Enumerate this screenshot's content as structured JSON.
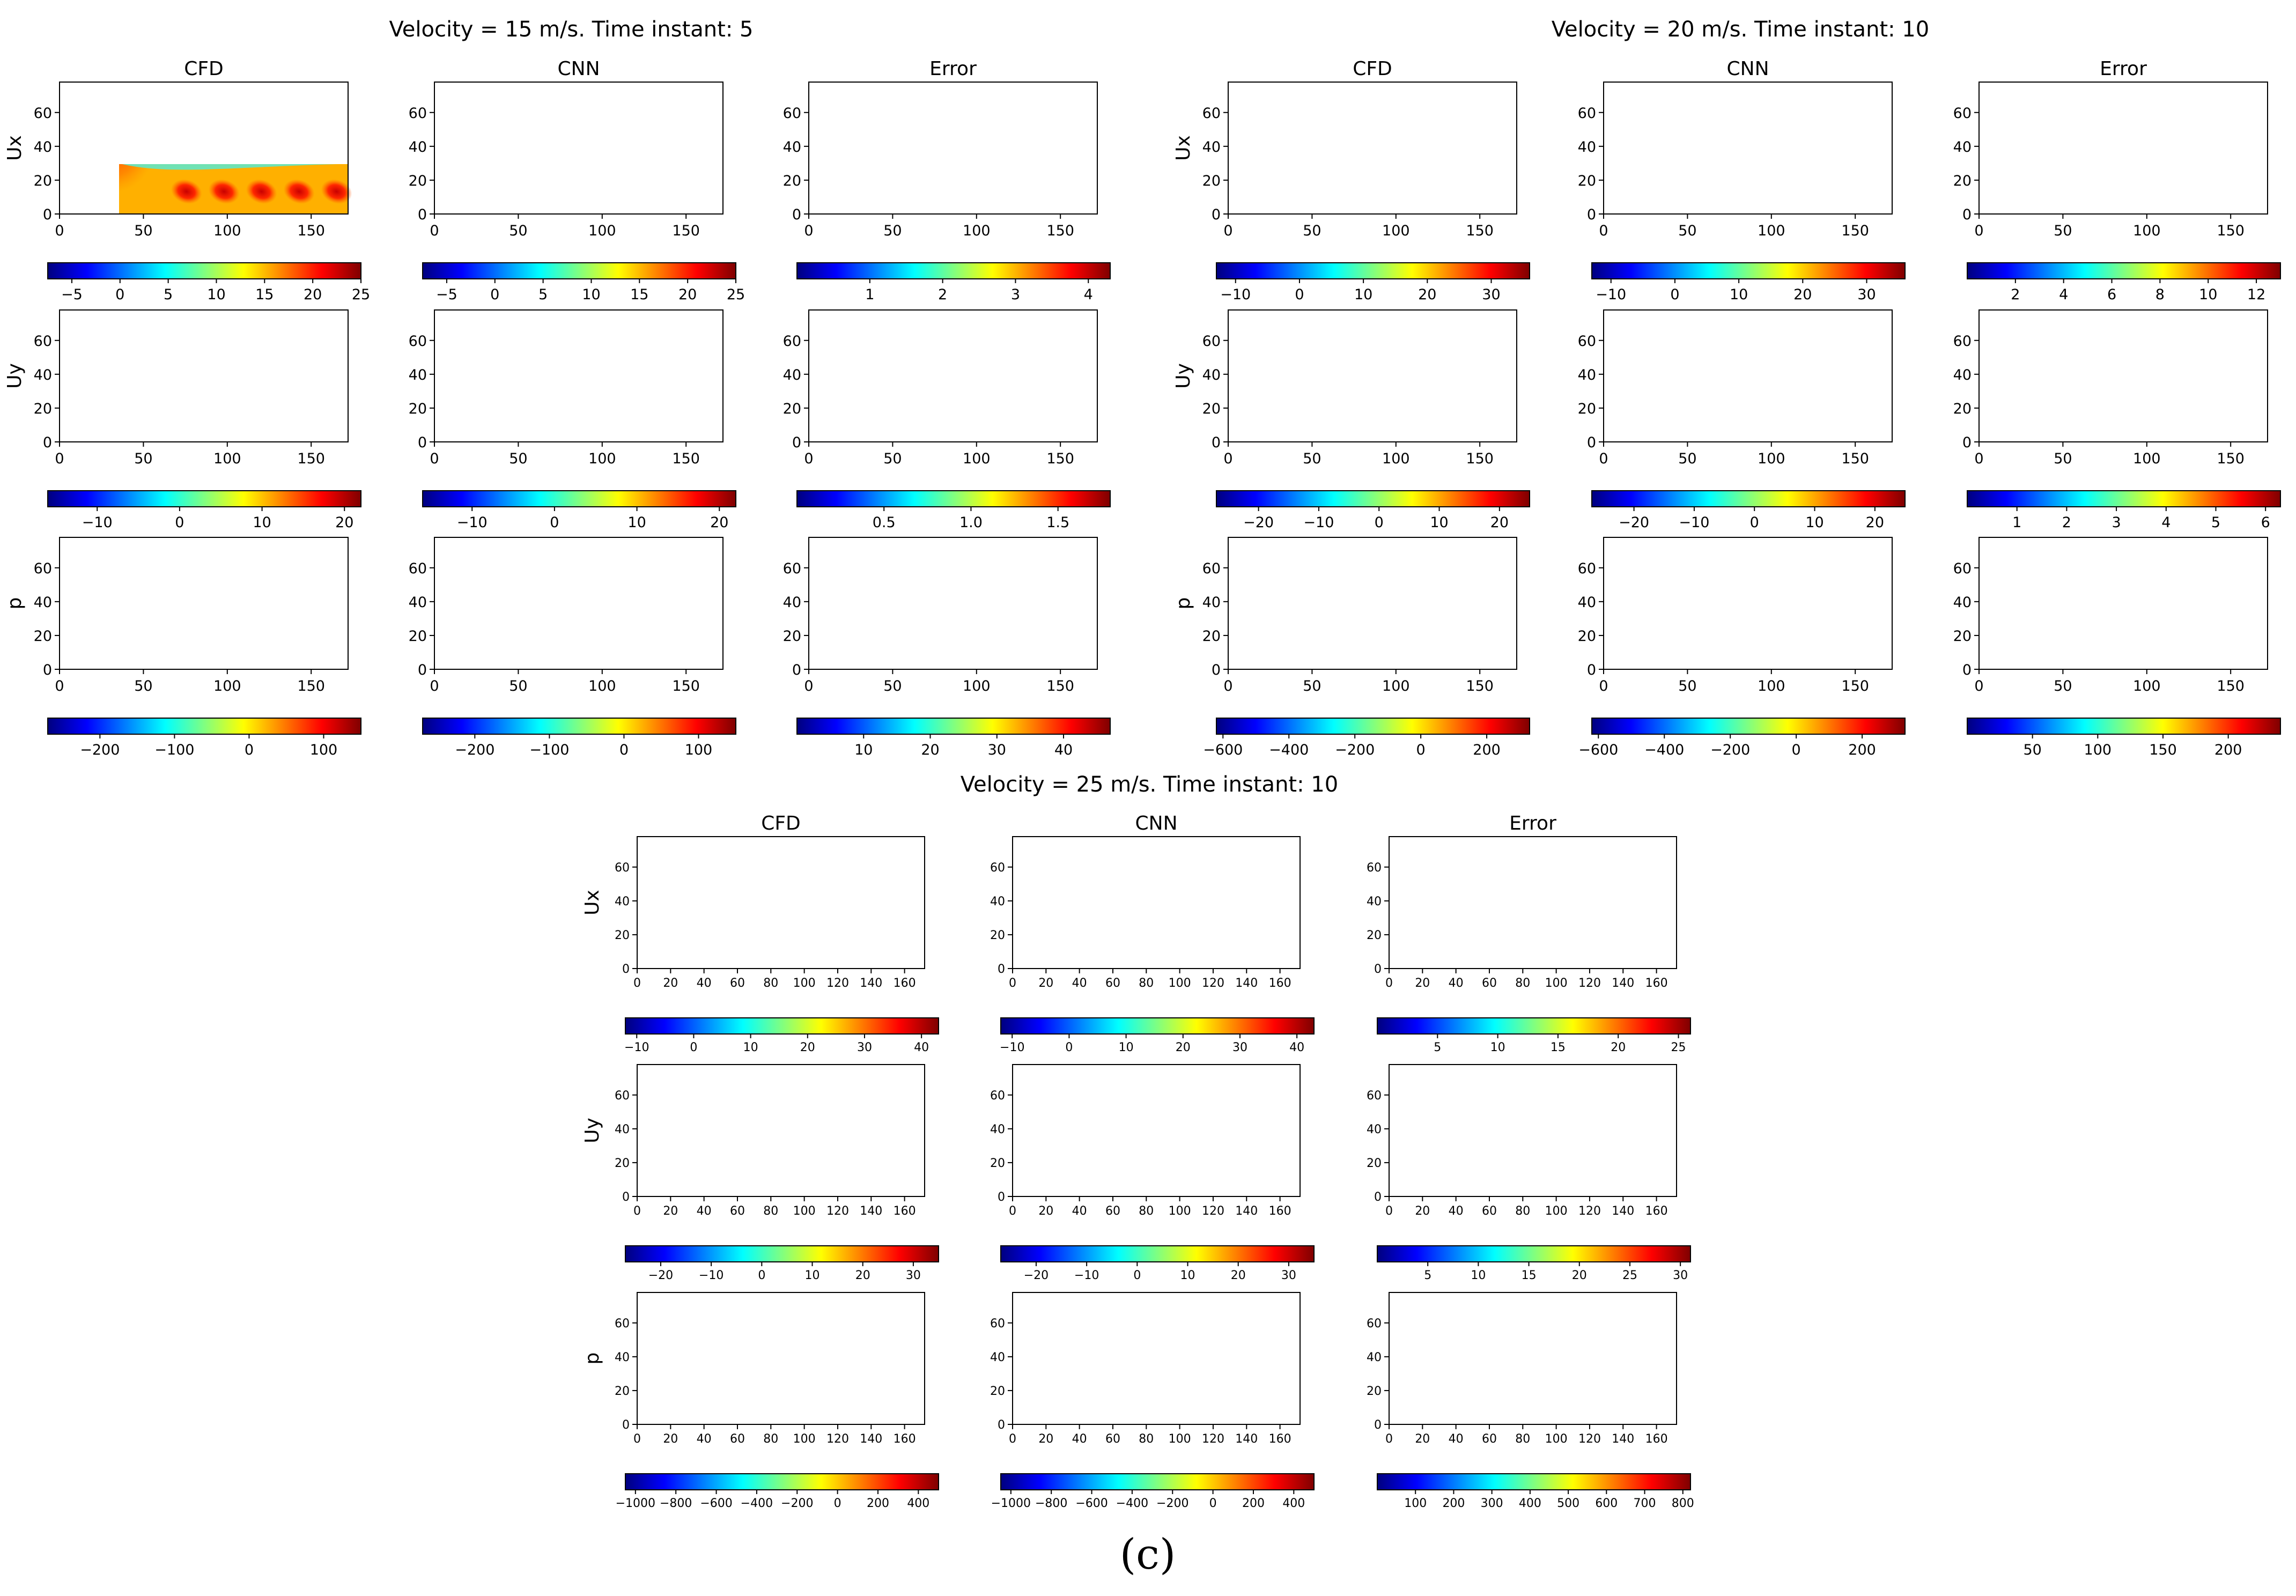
{
  "caption": "(c)",
  "colormap": [
    "#00007f",
    "#0000ff",
    "#0080ff",
    "#00ffff",
    "#80ff80",
    "#ffff00",
    "#ff8000",
    "#ff0000",
    "#7f0000"
  ],
  "chart_data": [
    {
      "type": "heatmap",
      "title": "Velocity = 15 m/s. Time instant: 5",
      "columns": [
        "CFD",
        "CNN",
        "Error"
      ],
      "fields": [
        "Ux",
        "Uy",
        "p"
      ],
      "xlim": [
        0,
        172
      ],
      "ylim": [
        0,
        78
      ],
      "x_ticks": [
        0,
        50,
        100,
        150
      ],
      "y_ticks": [
        0,
        20,
        40,
        60
      ],
      "colorbars": [
        [
          {
            "min": -7.5,
            "max": 25,
            "ticks": [
              -5,
              0,
              5,
              10,
              15,
              20,
              25
            ]
          },
          {
            "min": -7.5,
            "max": 25,
            "ticks": [
              -5,
              0,
              5,
              10,
              15,
              20,
              25
            ]
          },
          {
            "min": 0,
            "max": 4.3,
            "ticks": [
              1,
              2,
              3,
              4
            ]
          }
        ],
        [
          {
            "min": -16,
            "max": 22,
            "ticks": [
              -10,
              0,
              10,
              20
            ]
          },
          {
            "min": -16,
            "max": 22,
            "ticks": [
              -10,
              0,
              10,
              20
            ]
          },
          {
            "min": 0,
            "max": 1.8,
            "ticks": [
              0.5,
              1.0,
              1.5
            ]
          }
        ],
        [
          {
            "min": -270,
            "max": 150,
            "ticks": [
              -200,
              -100,
              0,
              100
            ]
          },
          {
            "min": -270,
            "max": 150,
            "ticks": [
              -200,
              -100,
              0,
              100
            ]
          },
          {
            "min": 0,
            "max": 47,
            "ticks": [
              10,
              20,
              30,
              40
            ]
          }
        ]
      ],
      "tick_labels": {
        "x": [
          "0",
          "50",
          "100",
          "150"
        ],
        "y": [
          "0",
          "20",
          "40",
          "60"
        ],
        "cb": [
          [
            [
              "−5",
              "0",
              "5",
              "10",
              "15",
              "20",
              "25"
            ],
            [
              "−5",
              "0",
              "5",
              "10",
              "15",
              "20",
              "25"
            ],
            [
              "1",
              "2",
              "3",
              "4"
            ]
          ],
          [
            [
              "−10",
              "0",
              "10",
              "20"
            ],
            [
              "−10",
              "0",
              "10",
              "20"
            ],
            [
              "0.5",
              "1.0",
              "1.5"
            ]
          ],
          [
            [
              "−200",
              "−100",
              "0",
              "100"
            ],
            [
              "−200",
              "−100",
              "0",
              "100"
            ],
            [
              "10",
              "20",
              "30",
              "40"
            ]
          ]
        ]
      }
    },
    {
      "type": "heatmap",
      "title": "Velocity = 20 m/s. Time instant: 10",
      "columns": [
        "CFD",
        "CNN",
        "Error"
      ],
      "fields": [
        "Ux",
        "Uy",
        "p"
      ],
      "xlim": [
        0,
        172
      ],
      "ylim": [
        0,
        78
      ],
      "x_ticks": [
        0,
        50,
        100,
        150
      ],
      "y_ticks": [
        0,
        20,
        40,
        60
      ],
      "colorbars": [
        [
          {
            "min": -13,
            "max": 36,
            "ticks": [
              -10,
              0,
              10,
              20,
              30
            ]
          },
          {
            "min": -13,
            "max": 36,
            "ticks": [
              -10,
              0,
              10,
              20,
              30
            ]
          },
          {
            "min": 0,
            "max": 13,
            "ticks": [
              2,
              4,
              6,
              8,
              10,
              12
            ]
          }
        ],
        [
          {
            "min": -27,
            "max": 25,
            "ticks": [
              -20,
              -10,
              0,
              10,
              20
            ]
          },
          {
            "min": -27,
            "max": 25,
            "ticks": [
              -20,
              -10,
              0,
              10,
              20
            ]
          },
          {
            "min": 0,
            "max": 6.3,
            "ticks": [
              1,
              2,
              3,
              4,
              5,
              6
            ]
          }
        ],
        [
          {
            "min": -620,
            "max": 330,
            "ticks": [
              -600,
              -400,
              -200,
              0,
              200
            ]
          },
          {
            "min": -620,
            "max": 330,
            "ticks": [
              -600,
              -400,
              -200,
              0,
              200
            ]
          },
          {
            "min": 0,
            "max": 240,
            "ticks": [
              50,
              100,
              150,
              200
            ]
          }
        ]
      ],
      "tick_labels": {
        "x": [
          "0",
          "50",
          "100",
          "150"
        ],
        "y": [
          "0",
          "20",
          "40",
          "60"
        ],
        "cb": [
          [
            [
              "−10",
              "0",
              "10",
              "20",
              "30"
            ],
            [
              "−10",
              "0",
              "10",
              "20",
              "30"
            ],
            [
              "2",
              "4",
              "6",
              "8",
              "10",
              "12"
            ]
          ],
          [
            [
              "−20",
              "−10",
              "0",
              "10",
              "20"
            ],
            [
              "−20",
              "−10",
              "0",
              "10",
              "20"
            ],
            [
              "1",
              "2",
              "3",
              "4",
              "5",
              "6"
            ]
          ],
          [
            [
              "−600",
              "−400",
              "−200",
              "0",
              "200"
            ],
            [
              "−600",
              "−400",
              "−200",
              "0",
              "200"
            ],
            [
              "50",
              "100",
              "150",
              "200"
            ]
          ]
        ]
      }
    },
    {
      "type": "heatmap",
      "title": "Velocity = 25 m/s. Time instant: 10",
      "columns": [
        "CFD",
        "CNN",
        "Error"
      ],
      "fields": [
        "Ux",
        "Uy",
        "p"
      ],
      "xlim": [
        0,
        172
      ],
      "ylim": [
        0,
        78
      ],
      "x_ticks": [
        0,
        20,
        40,
        60,
        80,
        100,
        120,
        140,
        160
      ],
      "y_ticks": [
        0,
        20,
        40,
        60
      ],
      "colorbars": [
        [
          {
            "min": -12,
            "max": 43,
            "ticks": [
              -10,
              0,
              10,
              20,
              30,
              40
            ]
          },
          {
            "min": -12,
            "max": 43,
            "ticks": [
              -10,
              0,
              10,
              20,
              30,
              40
            ]
          },
          {
            "min": 0,
            "max": 26,
            "ticks": [
              5,
              10,
              15,
              20,
              25
            ]
          }
        ],
        [
          {
            "min": -27,
            "max": 35,
            "ticks": [
              -20,
              -10,
              0,
              10,
              20,
              30
            ]
          },
          {
            "min": -27,
            "max": 35,
            "ticks": [
              -20,
              -10,
              0,
              10,
              20,
              30
            ]
          },
          {
            "min": 0,
            "max": 31,
            "ticks": [
              5,
              10,
              15,
              20,
              25,
              30
            ]
          }
        ],
        [
          {
            "min": -1050,
            "max": 500,
            "ticks": [
              -1000,
              -800,
              -600,
              -400,
              -200,
              0,
              200,
              400
            ]
          },
          {
            "min": -1050,
            "max": 500,
            "ticks": [
              -1000,
              -800,
              -600,
              -400,
              -200,
              0,
              200,
              400
            ]
          },
          {
            "min": 0,
            "max": 820,
            "ticks": [
              100,
              200,
              300,
              400,
              500,
              600,
              700,
              800
            ]
          }
        ]
      ],
      "tick_labels": {
        "x": [
          "0",
          "20",
          "40",
          "60",
          "80",
          "100",
          "120",
          "140",
          "160"
        ],
        "y": [
          "0",
          "20",
          "40",
          "60"
        ],
        "cb": [
          [
            [
              "−10",
              "0",
              "10",
              "20",
              "30",
              "40"
            ],
            [
              "−10",
              "0",
              "10",
              "20",
              "30",
              "40"
            ],
            [
              "5",
              "10",
              "15",
              "20",
              "25"
            ]
          ],
          [
            [
              "−20",
              "−10",
              "0",
              "10",
              "20",
              "30"
            ],
            [
              "−20",
              "−10",
              "0",
              "10",
              "20",
              "30"
            ],
            [
              "5",
              "10",
              "15",
              "20",
              "25",
              "30"
            ]
          ],
          [
            [
              "−1000",
              "−800",
              "−600",
              "−400",
              "−200",
              "0",
              "200",
              "400"
            ],
            [
              "−1000",
              "−800",
              "−600",
              "−400",
              "−200",
              "0",
              "200",
              "400"
            ],
            [
              "100",
              "200",
              "300",
              "400",
              "500",
              "600",
              "700",
              "800"
            ]
          ]
        ]
      }
    }
  ]
}
